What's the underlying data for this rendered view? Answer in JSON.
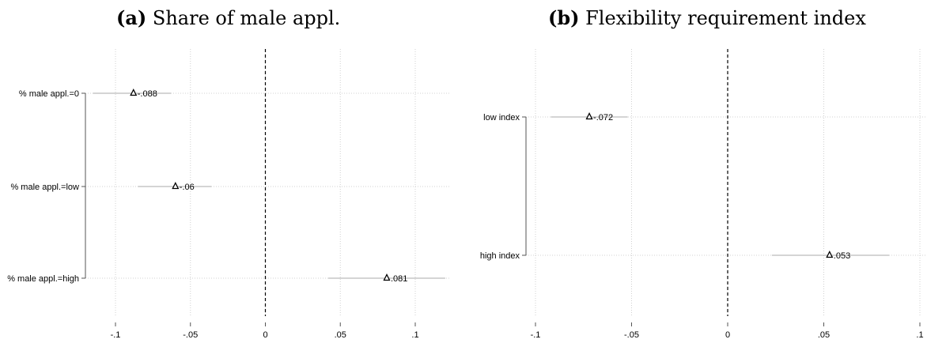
{
  "panels": [
    {
      "label": "(a)",
      "title": "Share of male appl.",
      "chart_data": {
        "type": "scatter",
        "title": "Share of male appl.",
        "subtitle": "",
        "xlabel": "",
        "ylabel": "",
        "xlim": [
          -0.1,
          0.1
        ],
        "xticks": [
          "-.1",
          "-.05",
          "0",
          ".05",
          ".1"
        ],
        "reference_line_x": 0,
        "grid": true,
        "marker": "hollow-triangle",
        "categories": [
          "% male appl.=0",
          "% male appl.=low",
          "% male appl.=high"
        ],
        "series": [
          {
            "values": [
              -0.088,
              -0.06,
              0.081
            ],
            "labels": [
              "-.088",
              "-.06",
              ".081"
            ],
            "ci_low": [
              -0.115,
              -0.085,
              0.042
            ],
            "ci_high": [
              -0.063,
              -0.036,
              0.12
            ]
          }
        ]
      }
    },
    {
      "label": "(b)",
      "title": "Flexibility requirement index",
      "chart_data": {
        "type": "scatter",
        "title": "Flexibility requirement index",
        "subtitle": "",
        "xlabel": "",
        "ylabel": "",
        "xlim": [
          -0.1,
          0.1
        ],
        "xticks": [
          "-.1",
          "-.05",
          "0",
          ".05",
          ".1"
        ],
        "reference_line_x": 0,
        "grid": true,
        "marker": "hollow-triangle",
        "categories": [
          "low index",
          "high index"
        ],
        "series": [
          {
            "values": [
              -0.072,
              0.053
            ],
            "labels": [
              "-.072",
              ".053"
            ],
            "ci_low": [
              -0.092,
              0.023
            ],
            "ci_high": [
              -0.052,
              0.084
            ]
          }
        ]
      }
    }
  ],
  "colors": {
    "grid": "#d0d0d0",
    "axis": "#555555",
    "ci": "#aaaaaa",
    "marker": "#000000",
    "text": "#000000"
  }
}
